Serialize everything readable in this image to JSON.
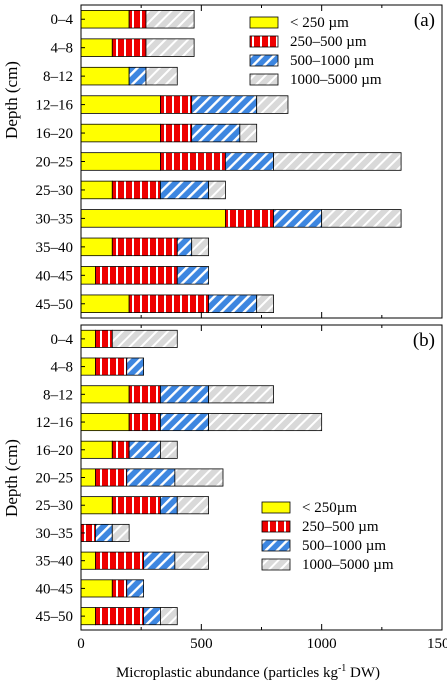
{
  "chart_data": [
    {
      "type": "bar",
      "orientation": "horizontal",
      "stacked": true,
      "panel_label": "(a)",
      "ylabel": "Depth (cm)",
      "xlim": [
        0,
        1500
      ],
      "categories": [
        "0–4",
        "4–8",
        "8–12",
        "12–16",
        "16–20",
        "20–25",
        "25–30",
        "30–35",
        "35–40",
        "40–45",
        "45–50"
      ],
      "series": [
        {
          "name": "< 250 µm",
          "values": [
            200,
            130,
            200,
            330,
            330,
            330,
            130,
            600,
            130,
            60,
            200
          ]
        },
        {
          "name": "250–500 µm",
          "values": [
            70,
            140,
            0,
            130,
            130,
            270,
            200,
            200,
            270,
            340,
            330
          ]
        },
        {
          "name": "500–1000 µm",
          "values": [
            0,
            0,
            70,
            270,
            200,
            200,
            200,
            200,
            60,
            130,
            200
          ]
        },
        {
          "name": "1000–5000 µm",
          "values": [
            200,
            200,
            130,
            130,
            70,
            530,
            70,
            330,
            70,
            0,
            70
          ]
        }
      ],
      "legend_position": "top-right"
    },
    {
      "type": "bar",
      "orientation": "horizontal",
      "stacked": true,
      "panel_label": "(b)",
      "ylabel": "Depth (cm)",
      "xlabel": "Microplastic abundance (particles kg",
      "xlabel_sup": "-1",
      "xlabel_tail": " DW)",
      "xlim": [
        0,
        1500
      ],
      "xticks": [
        0,
        500,
        1000,
        1500
      ],
      "categories": [
        "0–4",
        "4–8",
        "8–12",
        "12–16",
        "16–20",
        "20–25",
        "25–30",
        "30–35",
        "35–40",
        "40–45",
        "45–50"
      ],
      "series": [
        {
          "name": "< 250µm",
          "values": [
            60,
            60,
            200,
            200,
            130,
            60,
            130,
            0,
            60,
            130,
            60
          ]
        },
        {
          "name": "250–500 µm",
          "values": [
            70,
            130,
            130,
            130,
            70,
            130,
            200,
            60,
            200,
            60,
            200
          ]
        },
        {
          "name": "500–1000 µm",
          "values": [
            0,
            70,
            200,
            200,
            130,
            200,
            70,
            70,
            130,
            70,
            70
          ]
        },
        {
          "name": "1000–5000 µm",
          "values": [
            270,
            0,
            270,
            470,
            70,
            200,
            130,
            70,
            140,
            0,
            70
          ]
        }
      ],
      "legend_position": "bottom-right"
    }
  ]
}
